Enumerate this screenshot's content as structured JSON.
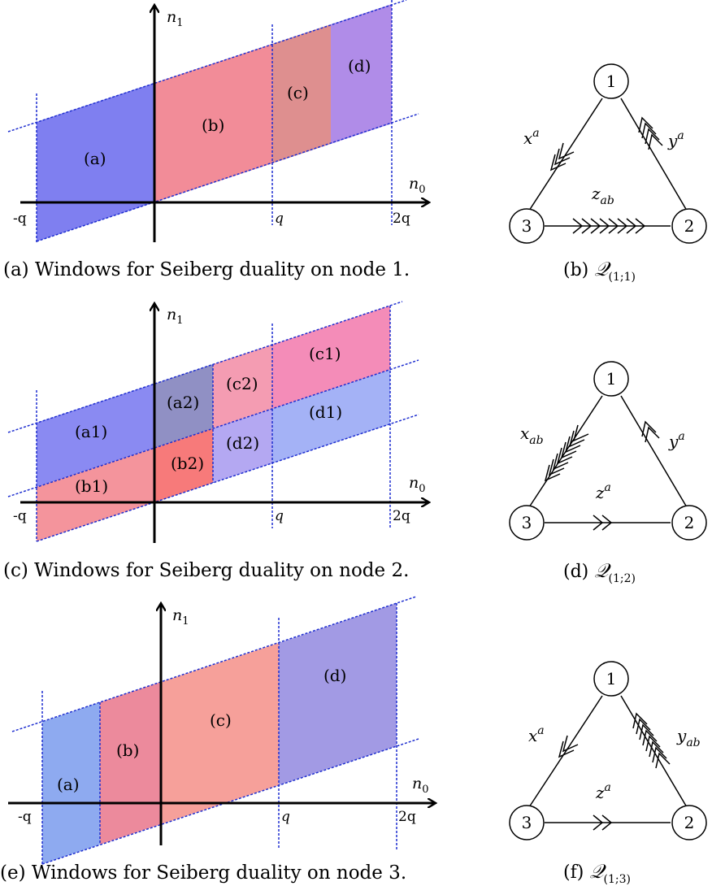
{
  "panels": {
    "a": {
      "caption": "(a) Windows for Seiberg duality on node 1.",
      "axis_n0": "n0",
      "axis_n1": "n1",
      "ticks": [
        "-q",
        "q",
        "2q"
      ],
      "regions": [
        {
          "label": "(a)",
          "color": "#7f7ff0"
        },
        {
          "label": "(b)",
          "color": "#f28c98"
        },
        {
          "label": "(c)",
          "color": "#de8f8f"
        },
        {
          "label": "(d)",
          "color": "#b08ce8"
        }
      ]
    },
    "b": {
      "caption_prefix": "(b)",
      "caption_q": "Q(1;1)",
      "nodes": [
        "1",
        "2",
        "3"
      ],
      "edges": {
        "left": "x^a",
        "right": "y^a",
        "bottom": "z_ab"
      }
    },
    "c": {
      "caption": "(c) Windows for Seiberg duality on node 2.",
      "axis_n0": "n0",
      "axis_n1": "n1",
      "ticks": [
        "-q",
        "q",
        "2q"
      ],
      "regions": [
        {
          "label": "(a1)",
          "color": "#8a8af2"
        },
        {
          "label": "(b1)",
          "color": "#f4949c"
        },
        {
          "label": "(a2)",
          "color": "#9090c4"
        },
        {
          "label": "(b2)",
          "color": "#f77a7a"
        },
        {
          "label": "(c2)",
          "color": "#f49cb2"
        },
        {
          "label": "(d2)",
          "color": "#b4a8f2"
        },
        {
          "label": "(c1)",
          "color": "#f48cb8"
        },
        {
          "label": "(d1)",
          "color": "#a4b2f6"
        }
      ]
    },
    "d": {
      "caption_prefix": "(d)",
      "caption_q": "Q(1;2)",
      "nodes": [
        "1",
        "2",
        "3"
      ],
      "edges": {
        "left": "x_ab",
        "right": "y^a",
        "bottom": "z^a"
      }
    },
    "e": {
      "caption": "(e) Windows for Seiberg duality on node 3.",
      "axis_n0": "n0",
      "axis_n1": "n1",
      "ticks": [
        "-q",
        "q",
        "2q"
      ],
      "regions": [
        {
          "label": "(a)",
          "color": "#8eaaf0"
        },
        {
          "label": "(b)",
          "color": "#ec8a9c"
        },
        {
          "label": "(c)",
          "color": "#f6a09a"
        },
        {
          "label": "(d)",
          "color": "#a29ae4"
        }
      ]
    },
    "f": {
      "caption_prefix": "(f)",
      "caption_q": "Q(1;3)",
      "nodes": [
        "1",
        "2",
        "3"
      ],
      "edges": {
        "left": "x^a",
        "right": "y_ab",
        "bottom": "z^a"
      }
    }
  },
  "colors": {
    "window_border": "#1f2fd0",
    "axis": "#000000"
  }
}
